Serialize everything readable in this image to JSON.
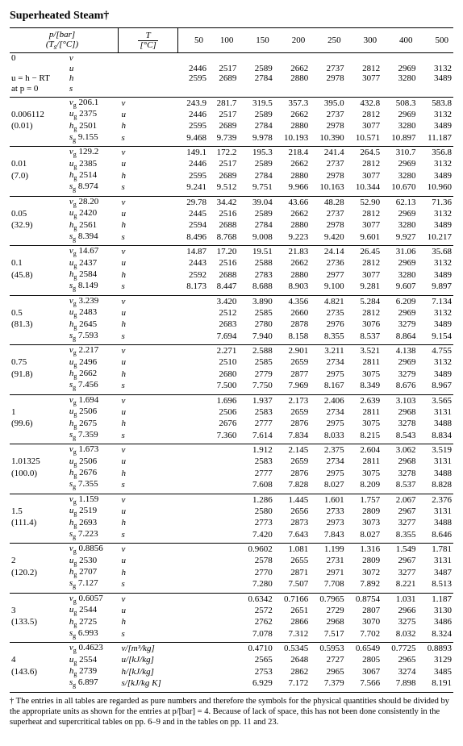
{
  "title": "Superheated Steam†",
  "header": {
    "rowlabel": "p/[bar]\n(T_s/[°C])",
    "tlabel_top": "T",
    "tlabel_bot": "[°C]",
    "temps": [
      "50",
      "100",
      "150",
      "200",
      "250",
      "300",
      "400",
      "500"
    ]
  },
  "footnote": "† The entries in all tables are regarded as pure numbers and therefore the symbols for the physical quantities should be divided by the appropriate units as shown for the entries at p/[bar] = 4. Because of lack of space, this has not been done consistently in the superheat and supercritical tables on pp. 6–9 and in the tables on pp. 11 and 23.",
  "blocks": [
    {
      "left": [
        "0",
        "",
        "u = h − RT",
        "at p = 0"
      ],
      "props": [
        "v",
        "u",
        "h",
        "s"
      ],
      "prop_sat": [
        null,
        null,
        null,
        null
      ],
      "rows": [
        [
          "",
          "",
          "",
          "",
          "",
          "",
          "",
          ""
        ],
        [
          "2446",
          "2517",
          "2589",
          "2662",
          "2737",
          "2812",
          "2969",
          "3132"
        ],
        [
          "2595",
          "2689",
          "2784",
          "2880",
          "2978",
          "3077",
          "3280",
          "3489"
        ],
        [
          "",
          "",
          "",
          "",
          "",
          "",
          "",
          ""
        ]
      ]
    },
    {
      "left": [
        "",
        "0.006112",
        "(0.01)",
        ""
      ],
      "props": [
        "v_g",
        "u_g",
        "h_g",
        "s_g"
      ],
      "prop_sat": [
        "206.1",
        "2375",
        "2501",
        "9.155"
      ],
      "prow": [
        "v",
        "u",
        "h",
        "s"
      ],
      "rows": [
        [
          "243.9",
          "281.7",
          "319.5",
          "357.3",
          "395.0",
          "432.8",
          "508.3",
          "583.8"
        ],
        [
          "2446",
          "2517",
          "2589",
          "2662",
          "2737",
          "2812",
          "2969",
          "3132"
        ],
        [
          "2595",
          "2689",
          "2784",
          "2880",
          "2978",
          "3077",
          "3280",
          "3489"
        ],
        [
          "9.468",
          "9.739",
          "9.978",
          "10.193",
          "10.390",
          "10.571",
          "10.897",
          "11.187"
        ]
      ]
    },
    {
      "left": [
        "",
        "0.01",
        "(7.0)",
        ""
      ],
      "props": [
        "v_g",
        "u_g",
        "h_g",
        "s_g"
      ],
      "prop_sat": [
        "129.2",
        "2385",
        "2514",
        "8.974"
      ],
      "prow": [
        "v",
        "u",
        "h",
        "s"
      ],
      "rows": [
        [
          "149.1",
          "172.2",
          "195.3",
          "218.4",
          "241.4",
          "264.5",
          "310.7",
          "356.8"
        ],
        [
          "2446",
          "2517",
          "2589",
          "2662",
          "2737",
          "2812",
          "2969",
          "3132"
        ],
        [
          "2595",
          "2689",
          "2784",
          "2880",
          "2978",
          "3077",
          "3280",
          "3489"
        ],
        [
          "9.241",
          "9.512",
          "9.751",
          "9.966",
          "10.163",
          "10.344",
          "10.670",
          "10.960"
        ]
      ]
    },
    {
      "left": [
        "",
        "0.05",
        "(32.9)",
        ""
      ],
      "props": [
        "v_g",
        "u_g",
        "h_g",
        "s_g"
      ],
      "prop_sat": [
        "28.20",
        "2420",
        "2561",
        "8.394"
      ],
      "prow": [
        "v",
        "u",
        "h",
        "s"
      ],
      "rows": [
        [
          "29.78",
          "34.42",
          "39.04",
          "43.66",
          "48.28",
          "52.90",
          "62.13",
          "71.36"
        ],
        [
          "2445",
          "2516",
          "2589",
          "2662",
          "2737",
          "2812",
          "2969",
          "3132"
        ],
        [
          "2594",
          "2688",
          "2784",
          "2880",
          "2978",
          "3077",
          "3280",
          "3489"
        ],
        [
          "8.496",
          "8.768",
          "9.008",
          "9.223",
          "9.420",
          "9.601",
          "9.927",
          "10.217"
        ]
      ]
    },
    {
      "left": [
        "",
        "0.1",
        "(45.8)",
        ""
      ],
      "props": [
        "v_g",
        "u_g",
        "h_g",
        "s_g"
      ],
      "prop_sat": [
        "14.67",
        "2437",
        "2584",
        "8.149"
      ],
      "prow": [
        "v",
        "u",
        "h",
        "s"
      ],
      "rows": [
        [
          "14.87",
          "17.20",
          "19.51",
          "21.83",
          "24.14",
          "26.45",
          "31.06",
          "35.68"
        ],
        [
          "2443",
          "2516",
          "2588",
          "2662",
          "2736",
          "2812",
          "2969",
          "3132"
        ],
        [
          "2592",
          "2688",
          "2783",
          "2880",
          "2977",
          "3077",
          "3280",
          "3489"
        ],
        [
          "8.173",
          "8.447",
          "8.688",
          "8.903",
          "9.100",
          "9.281",
          "9.607",
          "9.897"
        ]
      ]
    },
    {
      "left": [
        "",
        "0.5",
        "(81.3)",
        ""
      ],
      "props": [
        "v_g",
        "u_g",
        "h_g",
        "s_g"
      ],
      "prop_sat": [
        "3.239",
        "2483",
        "2645",
        "7.593"
      ],
      "prow": [
        "v",
        "u",
        "h",
        "s"
      ],
      "rows": [
        [
          "",
          "3.420",
          "3.890",
          "4.356",
          "4.821",
          "5.284",
          "6.209",
          "7.134"
        ],
        [
          "",
          "2512",
          "2585",
          "2660",
          "2735",
          "2812",
          "2969",
          "3132"
        ],
        [
          "",
          "2683",
          "2780",
          "2878",
          "2976",
          "3076",
          "3279",
          "3489"
        ],
        [
          "",
          "7.694",
          "7.940",
          "8.158",
          "8.355",
          "8.537",
          "8.864",
          "9.154"
        ]
      ]
    },
    {
      "left": [
        "",
        "0.75",
        "(91.8)",
        ""
      ],
      "props": [
        "v_g",
        "u_g",
        "h_g",
        "s_g"
      ],
      "prop_sat": [
        "2.217",
        "2496",
        "2662",
        "7.456"
      ],
      "prow": [
        "v",
        "u",
        "h",
        "s"
      ],
      "rows": [
        [
          "",
          "2.271",
          "2.588",
          "2.901",
          "3.211",
          "3.521",
          "4.138",
          "4.755"
        ],
        [
          "",
          "2510",
          "2585",
          "2659",
          "2734",
          "2811",
          "2969",
          "3132"
        ],
        [
          "",
          "2680",
          "2779",
          "2877",
          "2975",
          "3075",
          "3279",
          "3489"
        ],
        [
          "",
          "7.500",
          "7.750",
          "7.969",
          "8.167",
          "8.349",
          "8.676",
          "8.967"
        ]
      ]
    },
    {
      "left": [
        "",
        "1",
        "(99.6)",
        ""
      ],
      "props": [
        "v_g",
        "u_g",
        "h_g",
        "s_g"
      ],
      "prop_sat": [
        "1.694",
        "2506",
        "2675",
        "7.359"
      ],
      "prow": [
        "v",
        "u",
        "h",
        "s"
      ],
      "rows": [
        [
          "",
          "1.696",
          "1.937",
          "2.173",
          "2.406",
          "2.639",
          "3.103",
          "3.565"
        ],
        [
          "",
          "2506",
          "2583",
          "2659",
          "2734",
          "2811",
          "2968",
          "3131"
        ],
        [
          "",
          "2676",
          "2777",
          "2876",
          "2975",
          "3075",
          "3278",
          "3488"
        ],
        [
          "",
          "7.360",
          "7.614",
          "7.834",
          "8.033",
          "8.215",
          "8.543",
          "8.834"
        ]
      ]
    },
    {
      "left": [
        "",
        "1.01325",
        "(100.0)",
        ""
      ],
      "props": [
        "v_g",
        "u_g",
        "h_g",
        "s_g"
      ],
      "prop_sat": [
        "1.673",
        "2506",
        "2676",
        "7.355"
      ],
      "prow": [
        "v",
        "u",
        "h",
        "s"
      ],
      "rows": [
        [
          "",
          "",
          "1.912",
          "2.145",
          "2.375",
          "2.604",
          "3.062",
          "3.519"
        ],
        [
          "",
          "",
          "2583",
          "2659",
          "2734",
          "2811",
          "2968",
          "3131"
        ],
        [
          "",
          "",
          "2777",
          "2876",
          "2975",
          "3075",
          "3278",
          "3488"
        ],
        [
          "",
          "",
          "7.608",
          "7.828",
          "8.027",
          "8.209",
          "8.537",
          "8.828"
        ]
      ]
    },
    {
      "left": [
        "",
        "1.5",
        "(111.4)",
        ""
      ],
      "props": [
        "v_g",
        "u_g",
        "h_g",
        "s_g"
      ],
      "prop_sat": [
        "1.159",
        "2519",
        "2693",
        "7.223"
      ],
      "prow": [
        "v",
        "u",
        "h",
        "s"
      ],
      "rows": [
        [
          "",
          "",
          "1.286",
          "1.445",
          "1.601",
          "1.757",
          "2.067",
          "2.376"
        ],
        [
          "",
          "",
          "2580",
          "2656",
          "2733",
          "2809",
          "2967",
          "3131"
        ],
        [
          "",
          "",
          "2773",
          "2873",
          "2973",
          "3073",
          "3277",
          "3488"
        ],
        [
          "",
          "",
          "7.420",
          "7.643",
          "7.843",
          "8.027",
          "8.355",
          "8.646"
        ]
      ]
    },
    {
      "left": [
        "",
        "2",
        "(120.2)",
        ""
      ],
      "props": [
        "v_g",
        "u_g",
        "h_g",
        "s_g"
      ],
      "prop_sat": [
        "0.8856",
        "2530",
        "2707",
        "7.127"
      ],
      "prow": [
        "v",
        "u",
        "h",
        "s"
      ],
      "rows": [
        [
          "",
          "",
          "0.9602",
          "1.081",
          "1.199",
          "1.316",
          "1.549",
          "1.781"
        ],
        [
          "",
          "",
          "2578",
          "2655",
          "2731",
          "2809",
          "2967",
          "3131"
        ],
        [
          "",
          "",
          "2770",
          "2871",
          "2971",
          "3072",
          "3277",
          "3487"
        ],
        [
          "",
          "",
          "7.280",
          "7.507",
          "7.708",
          "7.892",
          "8.221",
          "8.513"
        ]
      ]
    },
    {
      "left": [
        "",
        "3",
        "(133.5)",
        ""
      ],
      "props": [
        "v_g",
        "u_g",
        "h_g",
        "s_g"
      ],
      "prop_sat": [
        "0.6057",
        "2544",
        "2725",
        "6.993"
      ],
      "prow": [
        "v",
        "u",
        "h",
        "s"
      ],
      "rows": [
        [
          "",
          "",
          "0.6342",
          "0.7166",
          "0.7965",
          "0.8754",
          "1.031",
          "1.187"
        ],
        [
          "",
          "",
          "2572",
          "2651",
          "2729",
          "2807",
          "2966",
          "3130"
        ],
        [
          "",
          "",
          "2762",
          "2866",
          "2968",
          "3070",
          "3275",
          "3486"
        ],
        [
          "",
          "",
          "7.078",
          "7.312",
          "7.517",
          "7.702",
          "8.032",
          "8.324"
        ]
      ]
    },
    {
      "left": [
        "",
        "4",
        "(143.6)",
        ""
      ],
      "props": [
        "v_g",
        "u_g",
        "h_g",
        "s_g"
      ],
      "prop_sat": [
        "0.4623",
        "2554",
        "2739",
        "6.897"
      ],
      "prow": [
        "v/[m³/kg]",
        "u/[kJ/kg]",
        "h/[kJ/kg]",
        "s/[kJ/kg K]"
      ],
      "rows": [
        [
          "",
          "",
          "0.4710",
          "0.5345",
          "0.5953",
          "0.6549",
          "0.7725",
          "0.8893"
        ],
        [
          "",
          "",
          "2565",
          "2648",
          "2727",
          "2805",
          "2965",
          "3129"
        ],
        [
          "",
          "",
          "2753",
          "2862",
          "2965",
          "3067",
          "3274",
          "3485"
        ],
        [
          "",
          "",
          "6.929",
          "7.172",
          "7.379",
          "7.566",
          "7.898",
          "8.191"
        ]
      ],
      "last": true
    }
  ]
}
